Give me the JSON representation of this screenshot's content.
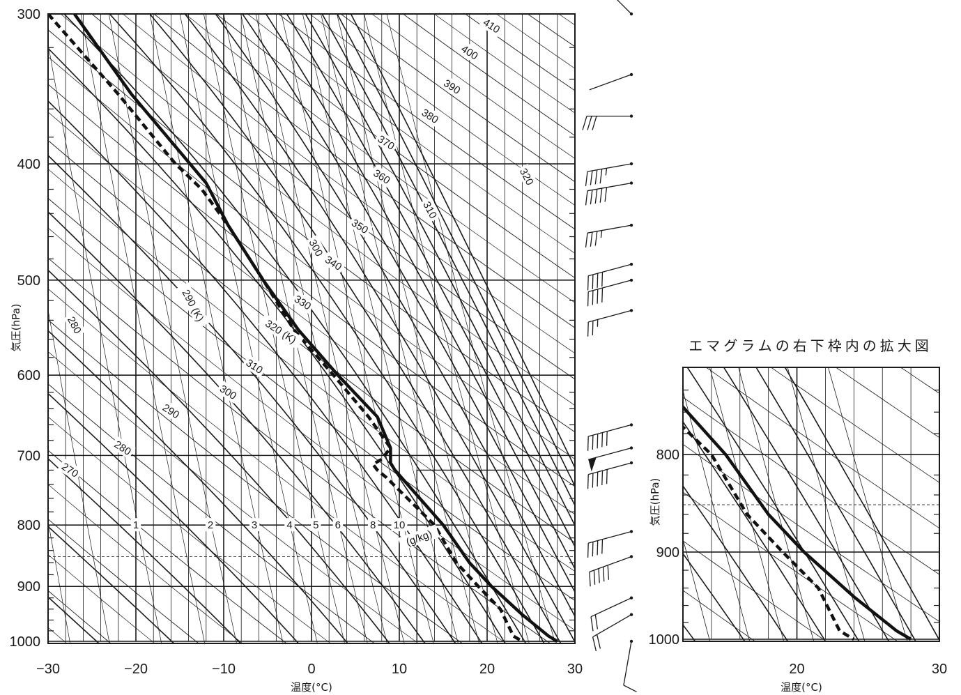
{
  "chart_data": [
    {
      "type": "line",
      "title": "",
      "xlabel": "温度(°C)",
      "ylabel": "気圧(hPa)",
      "xlim": [
        -30,
        30
      ],
      "ylim": [
        1000,
        300
      ],
      "y_scale": "log",
      "x_ticks": [
        "−30",
        "−20",
        "−10",
        "0",
        "10",
        "20",
        "30"
      ],
      "y_ticks": [
        "300",
        "400",
        "500",
        "600",
        "700",
        "800",
        "900",
        "1000"
      ],
      "dry_adiabat_labels": [
        {
          "text": "280",
          "p": 545,
          "t": -27
        },
        {
          "text": "290 (K)",
          "p": 525,
          "t": -13.5
        },
        {
          "text": "300",
          "p": 470,
          "t": 0.5
        },
        {
          "text": "310",
          "p": 437,
          "t": 13.5
        },
        {
          "text": "320",
          "p": 410,
          "t": 24.5
        }
      ],
      "moist_adiabat_labels": [
        {
          "text": "270",
          "p": 720,
          "t": -27.5
        },
        {
          "text": "280",
          "p": 690,
          "t": -21.5
        },
        {
          "text": "290",
          "p": 643,
          "t": -16
        },
        {
          "text": "300",
          "p": 620,
          "t": -9.5
        },
        {
          "text": "310",
          "p": 590,
          "t": -6.5
        },
        {
          "text": "320 (K)",
          "p": 552,
          "t": -3.5
        },
        {
          "text": "330",
          "p": 522,
          "t": -1
        },
        {
          "text": "340",
          "p": 484,
          "t": 2.5
        },
        {
          "text": "350",
          "p": 451,
          "t": 5.5
        },
        {
          "text": "360",
          "p": 410,
          "t": 8
        },
        {
          "text": "370",
          "p": 384,
          "t": 8.5
        },
        {
          "text": "380",
          "p": 365,
          "t": 13.5
        },
        {
          "text": "390",
          "p": 345,
          "t": 16
        },
        {
          "text": "400",
          "p": 323,
          "t": 18
        },
        {
          "text": "410",
          "p": 307,
          "t": 20.5
        }
      ],
      "mixing_ratio_labels": [
        {
          "text": "1",
          "t": -20
        },
        {
          "text": "2",
          "t": -11.5
        },
        {
          "text": "3",
          "t": -6.5
        },
        {
          "text": "4",
          "t": -2.5
        },
        {
          "text": "5",
          "t": 0.5
        },
        {
          "text": "6",
          "t": 3
        },
        {
          "text": "8",
          "t": 7
        },
        {
          "text": "10",
          "t": 10
        },
        {
          "text": "(g/kg)",
          "t": 10.5
        }
      ],
      "series": [
        {
          "style": "solid",
          "points": [
            [
              300,
              -27
            ],
            [
              350,
              -20.5
            ],
            [
              415,
              -12
            ],
            [
              450,
              -9.5
            ],
            [
              500,
              -5.5
            ],
            [
              550,
              -1.5
            ],
            [
              600,
              3
            ],
            [
              650,
              7.5
            ],
            [
              690,
              9
            ],
            [
              710,
              9
            ],
            [
              720,
              9.5
            ],
            [
              800,
              15
            ],
            [
              860,
              18
            ],
            [
              900,
              20.5
            ],
            [
              950,
              24
            ],
            [
              990,
              27
            ],
            [
              1000,
              28
            ]
          ]
        },
        {
          "style": "dashed",
          "points": [
            [
              300,
              -30
            ],
            [
              350,
              -22
            ],
            [
              400,
              -15.5
            ],
            [
              420,
              -12.5
            ],
            [
              450,
              -9.5
            ],
            [
              500,
              -5.5
            ],
            [
              550,
              -2
            ],
            [
              600,
              2.5
            ],
            [
              650,
              6.5
            ],
            [
              690,
              9
            ],
            [
              705,
              8
            ],
            [
              712,
              7
            ],
            [
              720,
              7.5
            ],
            [
              730,
              8.5
            ],
            [
              800,
              14
            ],
            [
              860,
              16.5
            ],
            [
              900,
              19
            ],
            [
              940,
              21.5
            ],
            [
              990,
              23
            ],
            [
              1000,
              24
            ]
          ]
        }
      ],
      "reference_line_p": 850,
      "inset_box": {
        "t": [
          12,
          30
        ],
        "p": [
          720,
          1000
        ]
      },
      "wind_barbs": [
        {
          "p": 300,
          "flags": 0,
          "full": 0,
          "half": 0,
          "angle": 135
        },
        {
          "p": 337,
          "flags": 0,
          "full": 0,
          "half": 0,
          "angle": 200
        },
        {
          "p": 365,
          "flags": 0,
          "full": 3,
          "half": 0,
          "angle": 180
        },
        {
          "p": 400,
          "flags": 0,
          "full": 4,
          "half": 1,
          "angle": 190
        },
        {
          "p": 415,
          "flags": 0,
          "full": 5,
          "half": 0,
          "angle": 190
        },
        {
          "p": 450,
          "flags": 0,
          "full": 3,
          "half": 1,
          "angle": 190
        },
        {
          "p": 485,
          "flags": 0,
          "full": 4,
          "half": 0,
          "angle": 195
        },
        {
          "p": 500,
          "flags": 0,
          "full": 4,
          "half": 0,
          "angle": 195
        },
        {
          "p": 530,
          "flags": 0,
          "full": 2,
          "half": 1,
          "angle": 195
        },
        {
          "p": 660,
          "flags": 0,
          "full": 5,
          "half": 0,
          "angle": 195
        },
        {
          "p": 690,
          "flags": 1,
          "full": 0,
          "half": 0,
          "angle": 195
        },
        {
          "p": 710,
          "flags": 0,
          "full": 5,
          "half": 0,
          "angle": 195
        },
        {
          "p": 810,
          "flags": 0,
          "full": 4,
          "half": 0,
          "angle": 195
        },
        {
          "p": 850,
          "flags": 0,
          "full": 5,
          "half": 0,
          "angle": 200
        },
        {
          "p": 920,
          "flags": 0,
          "full": 2,
          "half": 0,
          "angle": 205
        },
        {
          "p": 950,
          "flags": 0,
          "full": 2,
          "half": 0,
          "angle": 210
        },
        {
          "p": 1000,
          "flags": 0,
          "full": 1,
          "half": 0,
          "angle": 260
        }
      ]
    },
    {
      "type": "line",
      "title": "エマグラムの右下枠内の拡大図",
      "xlabel": "温度(°C)",
      "ylabel": "気圧(hPa)",
      "xlim": [
        12,
        30
      ],
      "ylim": [
        1000,
        720
      ],
      "y_scale": "log",
      "x_ticks": [
        "20",
        "30"
      ],
      "y_ticks": [
        "800",
        "900",
        "1000"
      ],
      "reference_line_p": 850
    }
  ]
}
